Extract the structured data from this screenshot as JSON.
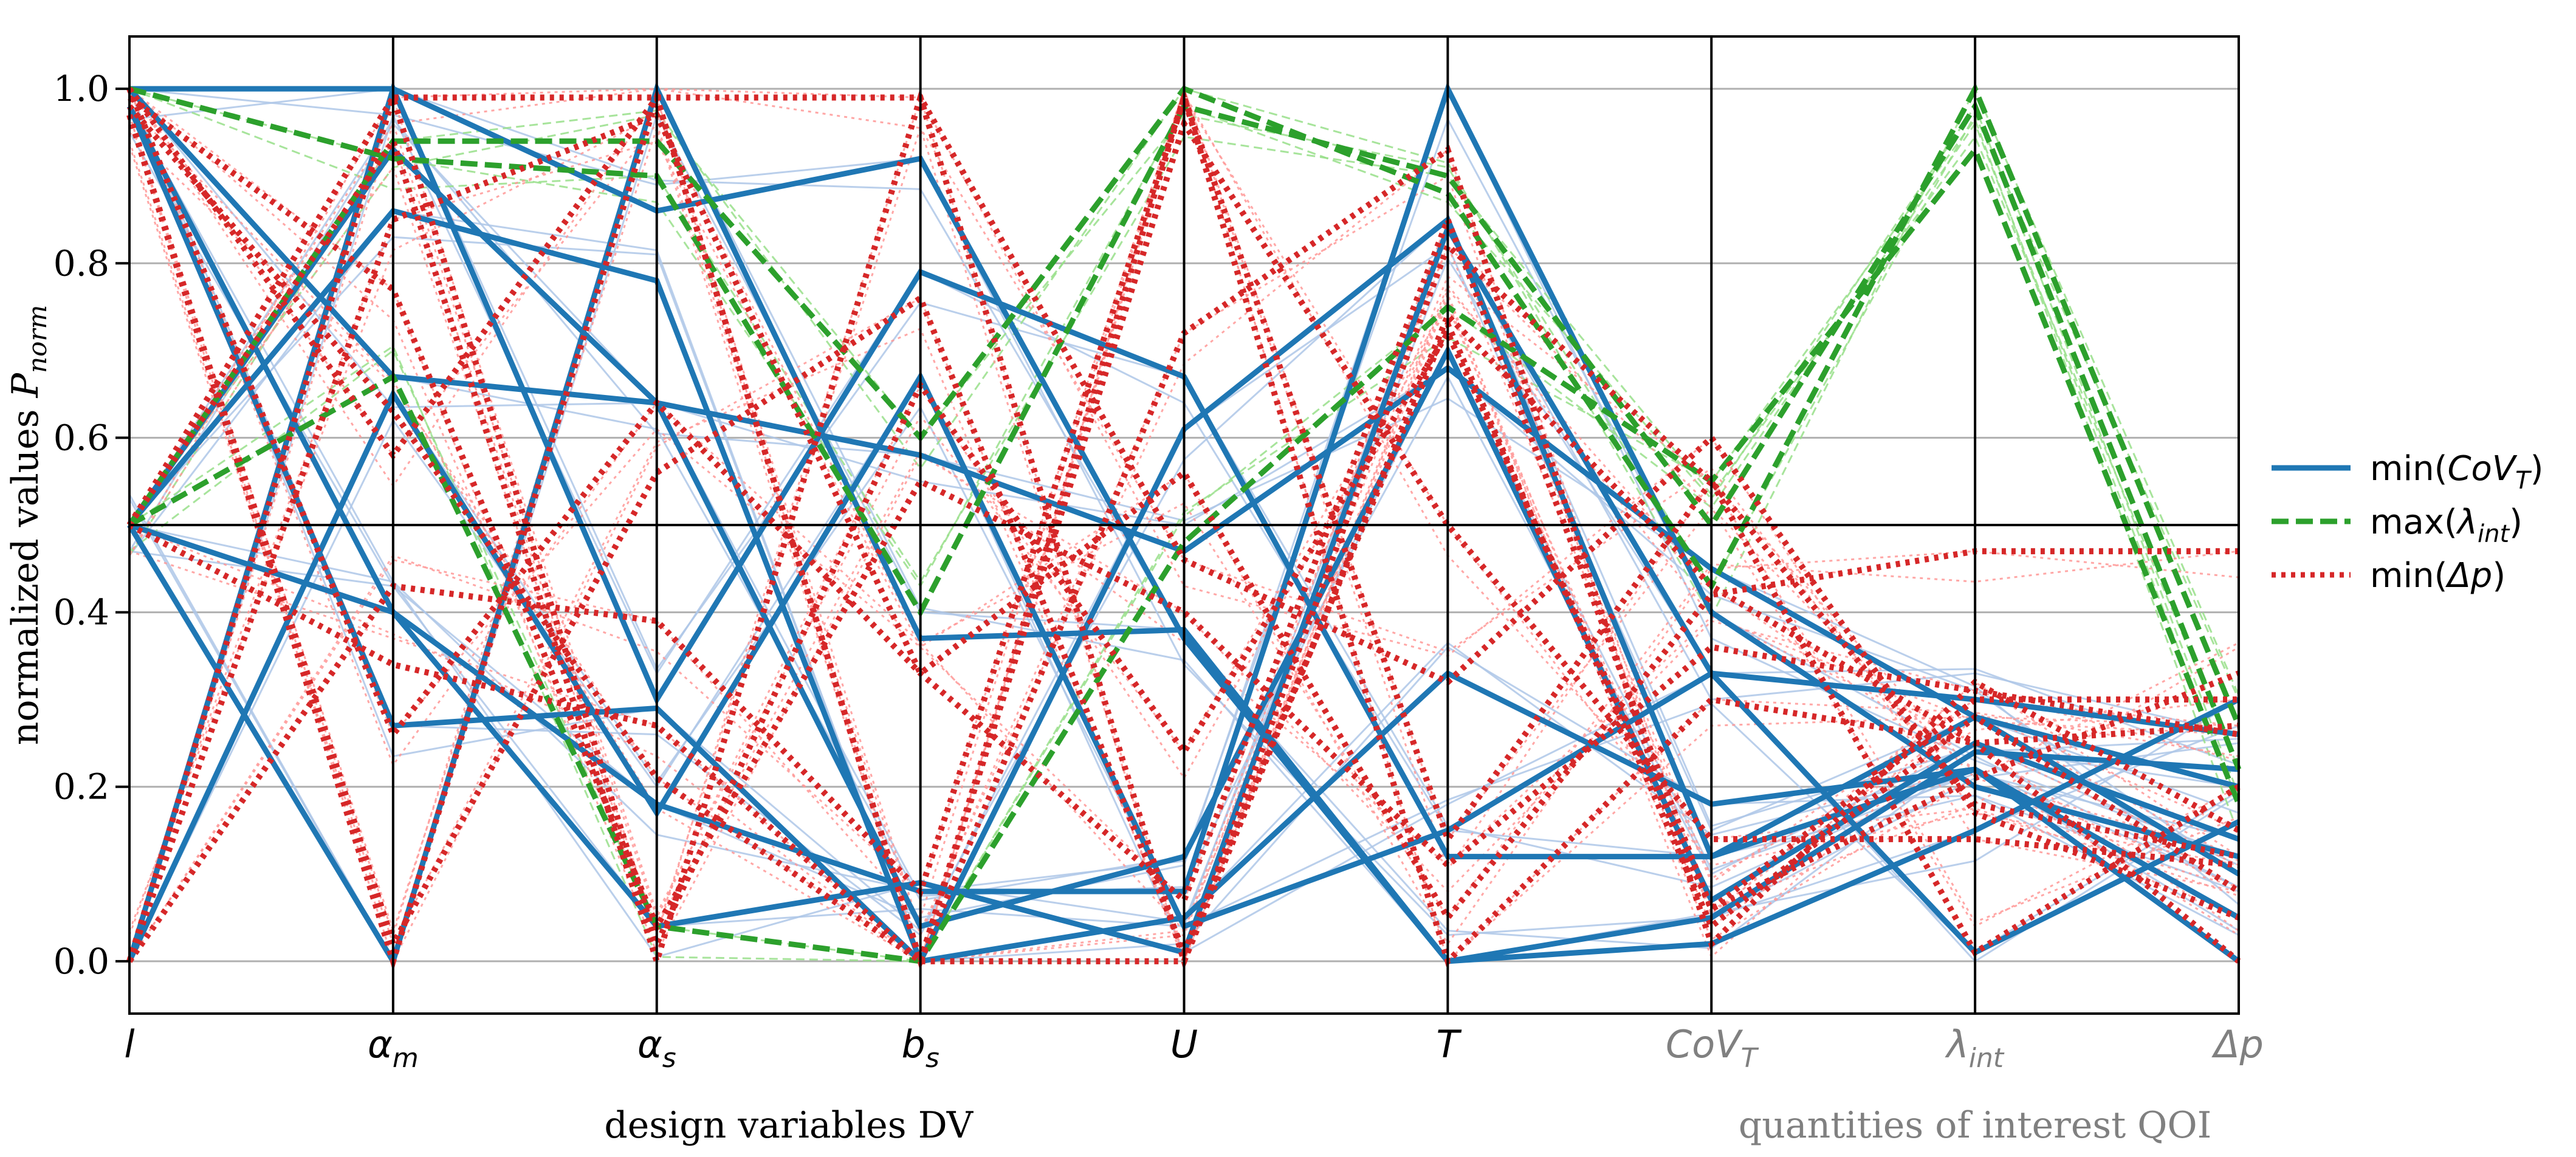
{
  "chart_data": {
    "type": "parallel-coordinates",
    "ylabel": "normalized values P_norm",
    "ylabel_parts": {
      "main": "normalized values ",
      "symbol": "P",
      "sub": "norm"
    },
    "ylim": [
      -0.06,
      1.06
    ],
    "yticks": [
      {
        "value": 0.0,
        "label": "0.0"
      },
      {
        "value": 0.2,
        "label": "0.2"
      },
      {
        "value": 0.4,
        "label": "0.4"
      },
      {
        "value": 0.6,
        "label": "0.6"
      },
      {
        "value": 0.8,
        "label": "0.8"
      },
      {
        "value": 1.0,
        "label": "1.0"
      }
    ],
    "reference_line": 0.5,
    "grid": true,
    "axes": [
      {
        "key": "l",
        "label": "l",
        "sub": "",
        "group": "dv"
      },
      {
        "key": "alpha_m",
        "label": "α",
        "sub": "m",
        "group": "dv"
      },
      {
        "key": "alpha_s",
        "label": "α",
        "sub": "s",
        "group": "dv"
      },
      {
        "key": "b_s",
        "label": "b",
        "sub": "s",
        "group": "dv"
      },
      {
        "key": "U",
        "label": "U",
        "sub": "",
        "group": "dv"
      },
      {
        "key": "T",
        "label": "T",
        "sub": "",
        "group": "dv"
      },
      {
        "key": "CoV_T",
        "label": "CoV",
        "sub": "T",
        "group": "qoi"
      },
      {
        "key": "lambda_int",
        "label": "λ",
        "sub": "int",
        "group": "qoi"
      },
      {
        "key": "delta_p",
        "label": "Δp",
        "sub": "",
        "group": "qoi"
      }
    ],
    "groups": {
      "dv": {
        "label": "design variables DV",
        "color": "#000000"
      },
      "qoi": {
        "label": "quantities of interest QOI",
        "color": "#808080"
      }
    },
    "legend": {
      "position": "right",
      "entries": [
        {
          "series": "min_cov",
          "prefix": "min(",
          "symbol": "CoV",
          "sub": "T",
          "suffix": ")"
        },
        {
          "series": "max_lambda",
          "prefix": "max(",
          "symbol": "λ",
          "sub": "int",
          "suffix": ")"
        },
        {
          "series": "min_dp",
          "prefix": "min(",
          "symbol": "Δp",
          "sub": "",
          "suffix": ")"
        }
      ]
    },
    "series": [
      {
        "key": "min_cov",
        "color": "#1f77b4",
        "faint_color": "#aec7e8",
        "dash": "solid",
        "lines": [
          [
            1.0,
            1.0,
            0.86,
            0.92,
            0.37,
            0.0,
            0.05,
            0.24,
            0.22
          ],
          [
            0.5,
            0.4,
            0.18,
            0.08,
            0.08,
            1.0,
            0.4,
            0.2,
            0.12
          ],
          [
            0.98,
            0.27,
            0.29,
            0.0,
            0.61,
            0.85,
            0.12,
            0.28,
            0.2
          ],
          [
            0.0,
            0.65,
            0.17,
            0.67,
            0.04,
            0.15,
            0.33,
            0.01,
            0.16
          ],
          [
            0.5,
            0.93,
            0.64,
            0.58,
            0.47,
            0.68,
            0.45,
            0.28,
            0.1
          ],
          [
            1.0,
            0.67,
            0.64,
            0.04,
            0.12,
            0.7,
            0.07,
            0.25,
            0.14
          ],
          [
            0.5,
            0.86,
            0.78,
            0.0,
            0.05,
            0.33,
            0.18,
            0.22,
            0.05
          ],
          [
            0.98,
            0.4,
            0.04,
            0.09,
            0.01,
            0.84,
            0.33,
            0.3,
            0.26
          ],
          [
            0.5,
            0.0,
            1.0,
            0.37,
            0.38,
            0.0,
            0.02,
            0.15,
            0.3
          ],
          [
            0.0,
            1.0,
            0.3,
            0.79,
            0.67,
            0.12,
            0.12,
            0.22,
            0.0
          ]
        ]
      },
      {
        "key": "max_lambda",
        "color": "#2ca02c",
        "faint_color": "#98df8a",
        "dash": "dashed",
        "lines": [
          [
            0.5,
            0.94,
            0.94,
            0.6,
            1.0,
            0.88,
            0.43,
            1.0,
            0.27
          ],
          [
            0.5,
            0.67,
            0.04,
            0.0,
            0.48,
            0.75,
            0.55,
            0.93,
            0.18
          ],
          [
            1.0,
            0.92,
            0.9,
            0.4,
            0.98,
            0.9,
            0.5,
            0.98,
            0.22
          ]
        ]
      },
      {
        "key": "min_dp",
        "color": "#d62728",
        "faint_color": "#ff9896",
        "dash": "dotted",
        "lines": [
          [
            0.0,
            0.99,
            0.99,
            0.99,
            0.0,
            0.74,
            0.43,
            0.25,
            0.0
          ],
          [
            0.97,
            0.0,
            0.99,
            0.0,
            0.99,
            0.14,
            0.55,
            0.18,
            0.12
          ],
          [
            1.0,
            0.26,
            0.64,
            0.33,
            0.07,
            0.85,
            0.06,
            0.3,
            0.3
          ],
          [
            0.5,
            0.94,
            0.0,
            0.99,
            0.46,
            0.32,
            0.6,
            0.17,
            0.05
          ],
          [
            0.0,
            0.43,
            0.39,
            0.08,
            0.99,
            0.0,
            0.3,
            0.25,
            0.27
          ],
          [
            1.0,
            0.58,
            0.99,
            0.0,
            0.72,
            0.93,
            0.02,
            0.32,
            0.15
          ],
          [
            0.5,
            0.99,
            0.02,
            0.66,
            0.24,
            0.72,
            0.06,
            0.21,
            0.33
          ],
          [
            0.98,
            0.63,
            0.21,
            0.0,
            0.0,
            0.82,
            0.55,
            0.01,
            0.2
          ],
          [
            0.0,
            0.85,
            0.97,
            0.33,
            0.56,
            0.05,
            0.42,
            0.47,
            0.47
          ],
          [
            0.97,
            0.02,
            0.56,
            0.76,
            0.01,
            0.73,
            0.04,
            0.28,
            0.08
          ],
          [
            0.5,
            0.34,
            0.27,
            0.0,
            0.96,
            0.5,
            0.14,
            0.14,
            0.11
          ],
          [
            0.99,
            0.77,
            0.04,
            0.55,
            0.4,
            0.11,
            0.36,
            0.31,
            0.26
          ]
        ]
      }
    ]
  }
}
